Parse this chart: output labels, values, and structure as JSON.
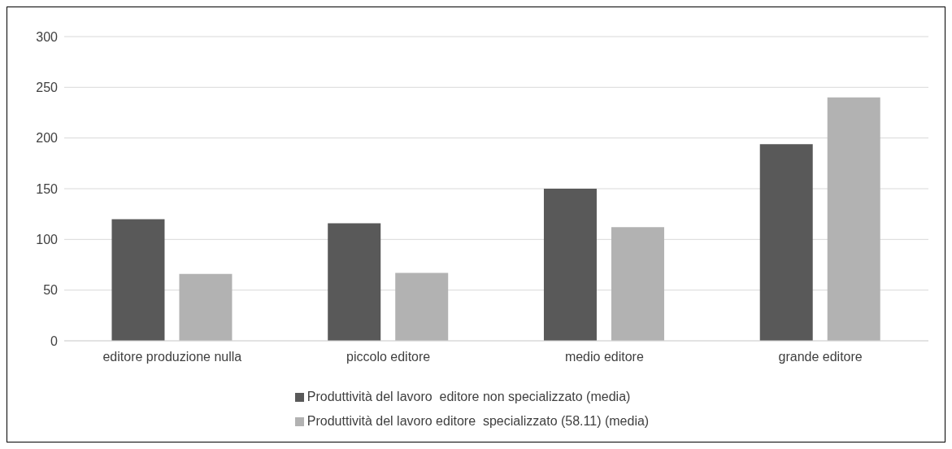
{
  "chart_data": {
    "type": "bar",
    "categories": [
      "editore produzione nulla",
      "piccolo editore",
      "medio editore",
      "grande editore"
    ],
    "series": [
      {
        "name": "Produttività del lavoro  editore non specializzato (media)",
        "color": "#595959",
        "values": [
          120,
          116,
          150,
          194
        ]
      },
      {
        "name": "Produttività del lavoro editore  specializzato (58.11) (media)",
        "color": "#b2b2b2",
        "values": [
          66,
          67,
          112,
          240
        ]
      }
    ],
    "ylim": [
      0,
      300
    ],
    "yticks": [
      0,
      50,
      100,
      150,
      200,
      250,
      300
    ],
    "grid": "y",
    "legend": "bottom"
  }
}
